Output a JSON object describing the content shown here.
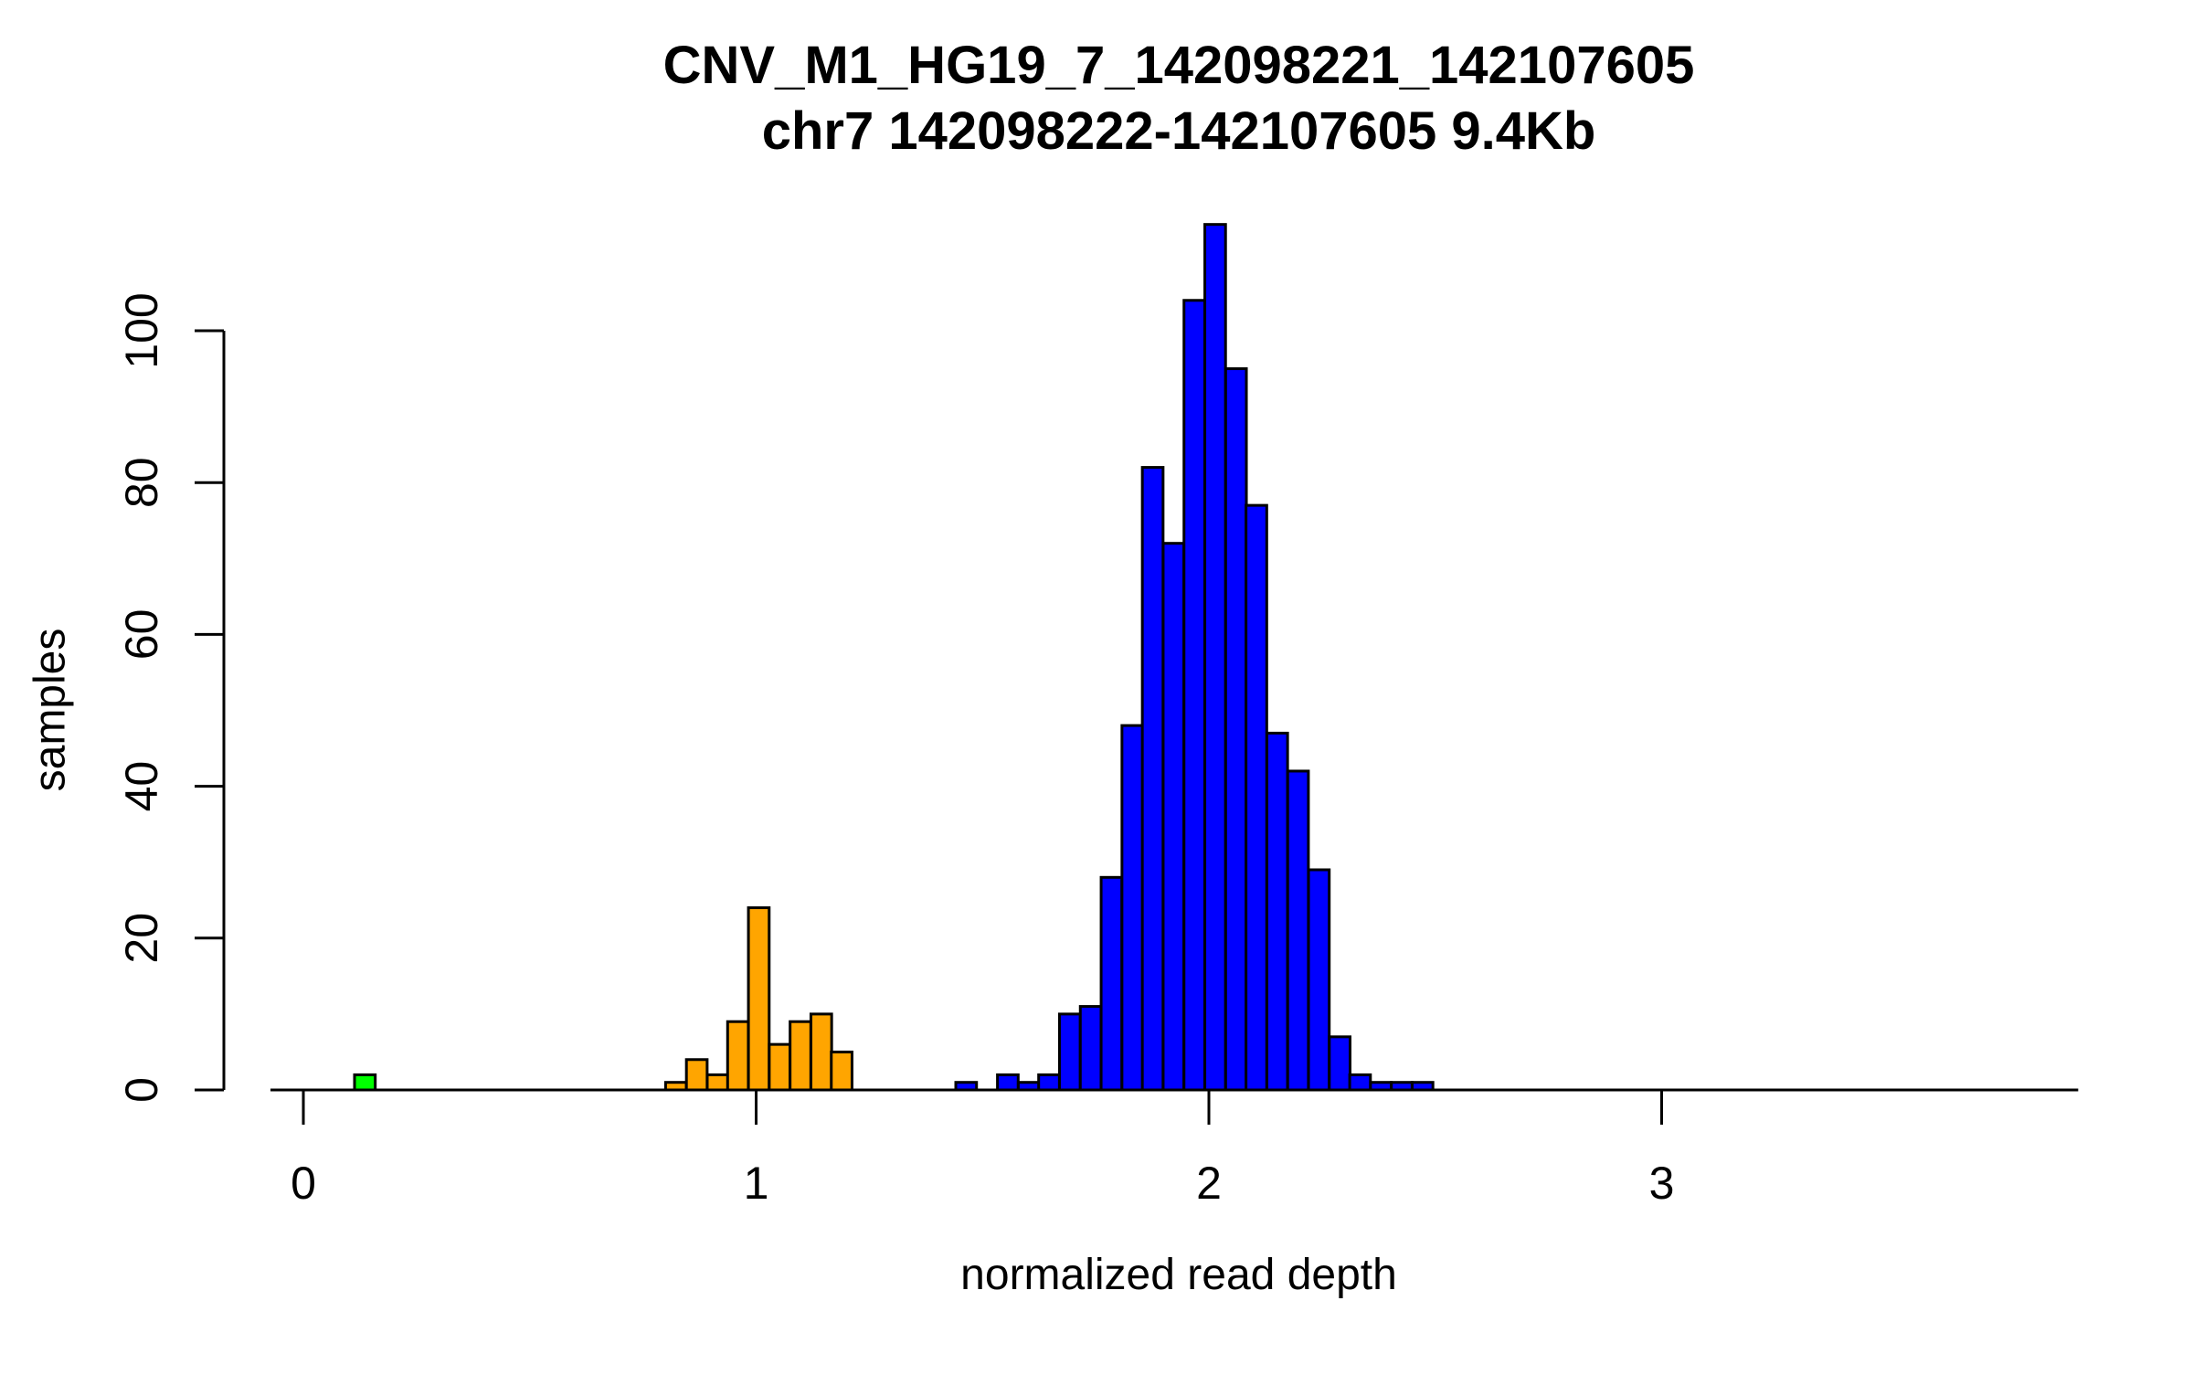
{
  "header": {
    "title": "CNV_M1_HG19_7_142098221_142107605",
    "subtitle": "chr7 142098222-142107605 9.4Kb"
  },
  "chart_data": {
    "type": "bar",
    "subtype": "histogram",
    "title": "CNV_M1_HG19_7_142098221_142107605",
    "subtitle": "chr7 142098222-142107605 9.4Kb",
    "xlabel": "normalized read depth",
    "ylabel": "samples",
    "xlim": [
      -0.07,
      3.92
    ],
    "ylim": [
      0,
      118
    ],
    "x_ticks": [
      0,
      1,
      2,
      3
    ],
    "y_ticks": [
      0,
      20,
      40,
      60,
      80,
      100
    ],
    "grid": false,
    "legend": "none",
    "bin_width": 0.0458,
    "colors": {
      "green": "#00ff00",
      "orange": "#ffa500",
      "blue": "#0000ff",
      "border": "#000000"
    },
    "bars": [
      {
        "x": 0.113,
        "count": 2,
        "color": "green"
      },
      {
        "x": 0.8,
        "count": 1,
        "color": "orange"
      },
      {
        "x": 0.846,
        "count": 4,
        "color": "orange"
      },
      {
        "x": 0.892,
        "count": 2,
        "color": "orange"
      },
      {
        "x": 0.937,
        "count": 9,
        "color": "orange"
      },
      {
        "x": 0.983,
        "count": 24,
        "color": "orange"
      },
      {
        "x": 1.029,
        "count": 6,
        "color": "orange"
      },
      {
        "x": 1.075,
        "count": 9,
        "color": "orange"
      },
      {
        "x": 1.121,
        "count": 10,
        "color": "orange"
      },
      {
        "x": 1.166,
        "count": 5,
        "color": "orange"
      },
      {
        "x": 1.441,
        "count": 1,
        "color": "blue"
      },
      {
        "x": 1.533,
        "count": 2,
        "color": "blue"
      },
      {
        "x": 1.579,
        "count": 1,
        "color": "blue"
      },
      {
        "x": 1.624,
        "count": 2,
        "color": "blue"
      },
      {
        "x": 1.67,
        "count": 10,
        "color": "blue"
      },
      {
        "x": 1.716,
        "count": 11,
        "color": "blue"
      },
      {
        "x": 1.762,
        "count": 28,
        "color": "blue"
      },
      {
        "x": 1.808,
        "count": 48,
        "color": "blue"
      },
      {
        "x": 1.853,
        "count": 82,
        "color": "blue"
      },
      {
        "x": 1.899,
        "count": 72,
        "color": "blue"
      },
      {
        "x": 1.945,
        "count": 104,
        "color": "blue"
      },
      {
        "x": 1.991,
        "count": 114,
        "color": "blue"
      },
      {
        "x": 2.037,
        "count": 95,
        "color": "blue"
      },
      {
        "x": 2.082,
        "count": 77,
        "color": "blue"
      },
      {
        "x": 2.128,
        "count": 47,
        "color": "blue"
      },
      {
        "x": 2.174,
        "count": 42,
        "color": "blue"
      },
      {
        "x": 2.22,
        "count": 29,
        "color": "blue"
      },
      {
        "x": 2.266,
        "count": 7,
        "color": "blue"
      },
      {
        "x": 2.311,
        "count": 2,
        "color": "blue"
      },
      {
        "x": 2.357,
        "count": 1,
        "color": "blue"
      },
      {
        "x": 2.403,
        "count": 1,
        "color": "blue"
      },
      {
        "x": 2.449,
        "count": 1,
        "color": "blue"
      }
    ]
  }
}
